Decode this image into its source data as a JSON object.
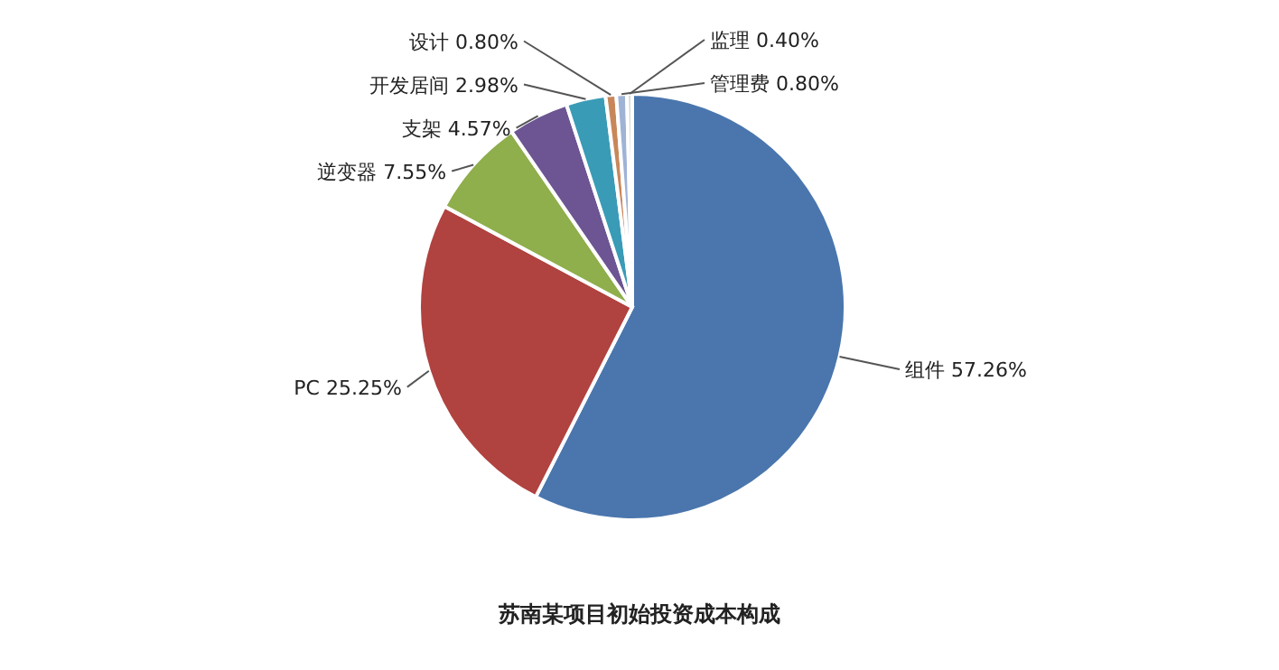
{
  "chart_data": {
    "type": "pie",
    "title": "苏南某项目初始投资成本构成",
    "categories": [
      "组件",
      "PC",
      "逆变器",
      "支架",
      "开发居间",
      "设计",
      "管理费",
      "监理"
    ],
    "values": [
      57.26,
      25.25,
      7.55,
      4.57,
      2.98,
      0.8,
      0.8,
      0.4
    ],
    "value_labels": [
      "57.26%",
      "25.25%",
      "7.55%",
      "4.57%",
      "2.98%",
      "0.80%",
      "0.80%",
      "0.40%"
    ],
    "colors": [
      "#4a76ad",
      "#b0423f",
      "#8fae4c",
      "#6c5592",
      "#3a9bb6",
      "#c8875a",
      "#9fb3d6",
      "#d9d9d9"
    ]
  }
}
